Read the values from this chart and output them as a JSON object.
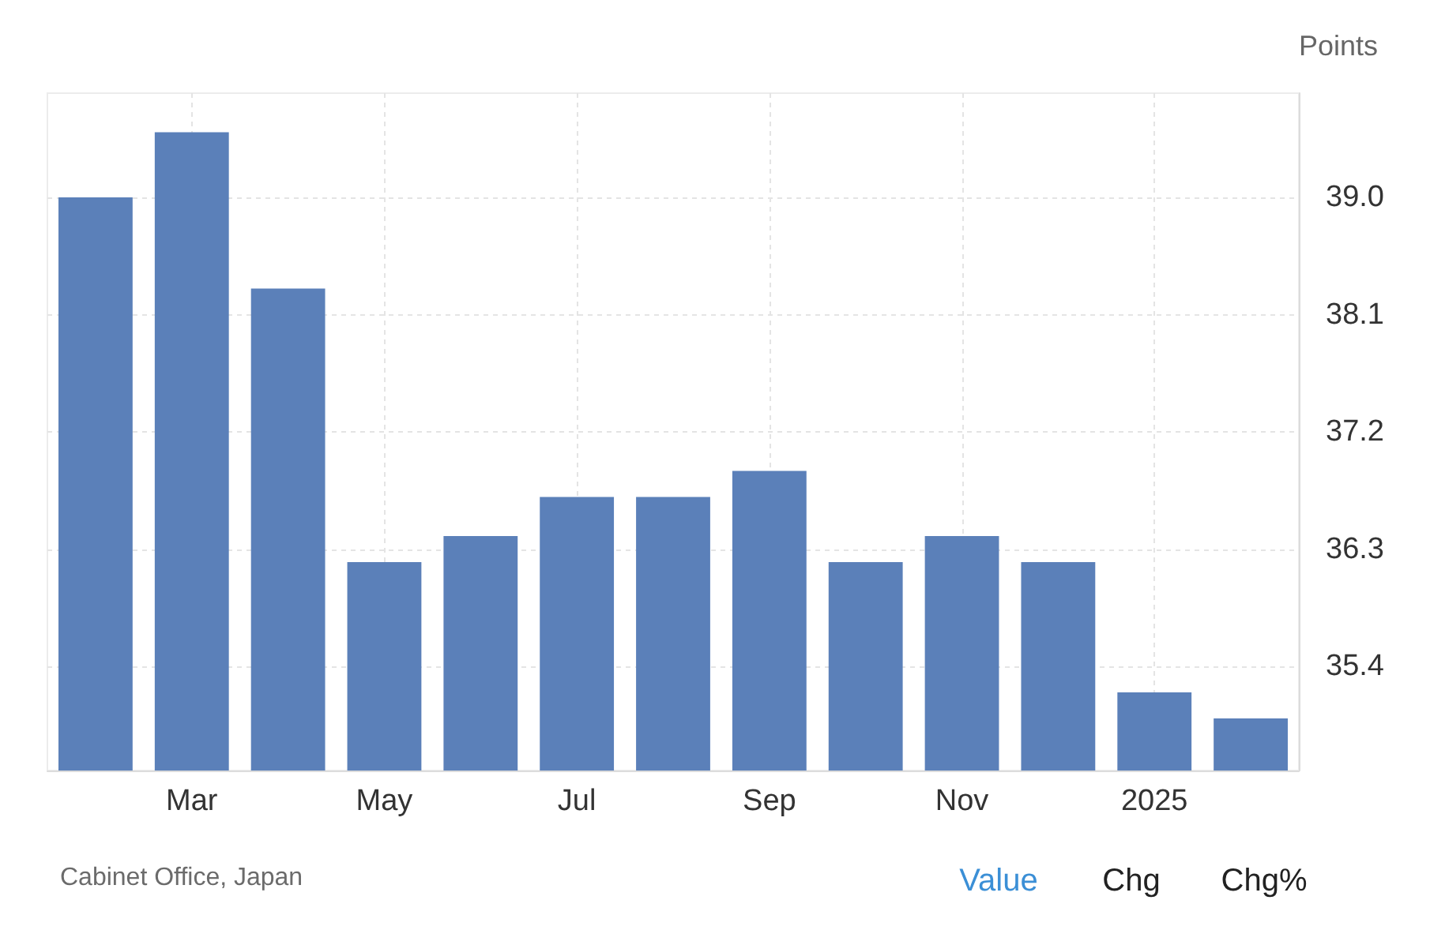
{
  "chart_data": {
    "type": "bar",
    "ylabel": "Points",
    "categories": [
      null,
      "Mar",
      null,
      "May",
      null,
      "Jul",
      null,
      "Sep",
      null,
      "Nov",
      null,
      "2025",
      null
    ],
    "values": [
      39.0,
      39.5,
      38.3,
      36.2,
      36.4,
      36.7,
      36.7,
      36.9,
      36.2,
      36.4,
      36.2,
      35.2,
      35.0
    ],
    "color": "#5b80b9",
    "ylim": [
      34.6,
      39.8
    ],
    "yticks": [
      35.4,
      36.3,
      37.2,
      38.1,
      {
        "value": 39.0,
        "label": "39.0"
      }
    ],
    "grid": true,
    "annotations": [
      "Cabinet Office, Japan",
      "Value",
      "Chg",
      "Chg%"
    ]
  }
}
